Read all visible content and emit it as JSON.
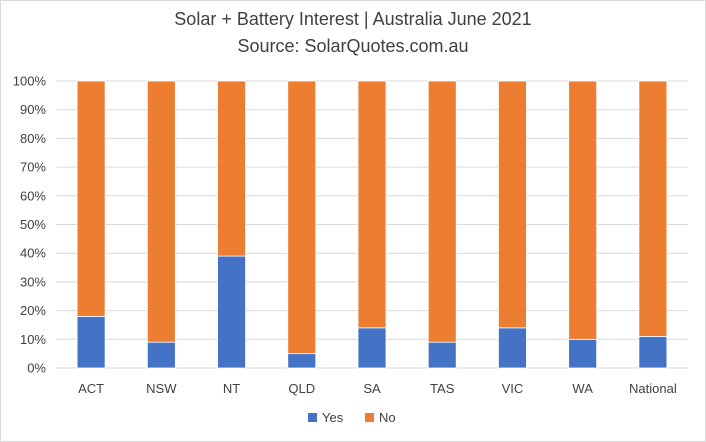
{
  "chart_data": {
    "type": "bar",
    "stacked": true,
    "title": "Solar + Battery Interest  | Australia June 2021",
    "subtitle": "Source: SolarQuotes.com.au",
    "xlabel": "",
    "ylabel": "",
    "categories": [
      "ACT",
      "NSW",
      "NT",
      "QLD",
      "SA",
      "TAS",
      "VIC",
      "WA",
      "National"
    ],
    "series": [
      {
        "name": "Yes",
        "color": "#4472c4",
        "values": [
          18,
          9,
          39,
          5,
          14,
          9,
          14,
          10,
          11
        ]
      },
      {
        "name": "No",
        "color": "#ed7d31",
        "values": [
          82,
          91,
          61,
          95,
          86,
          91,
          86,
          90,
          89
        ]
      }
    ],
    "ylim": [
      0,
      100
    ],
    "y_ticks": [
      "0%",
      "10%",
      "20%",
      "30%",
      "40%",
      "50%",
      "60%",
      "70%",
      "80%",
      "90%",
      "100%"
    ],
    "grid": true,
    "legend_position": "bottom"
  }
}
